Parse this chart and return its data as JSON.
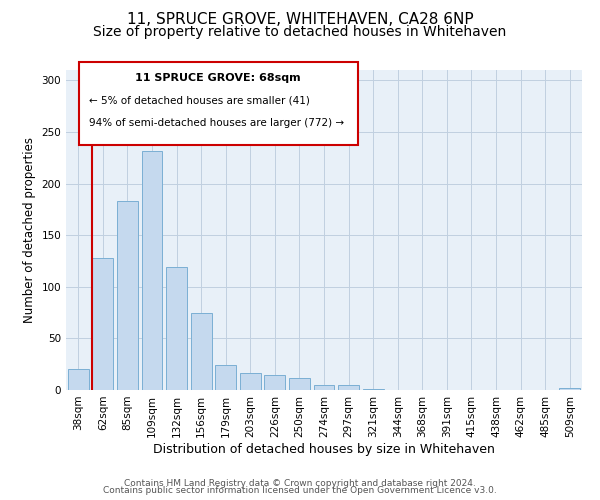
{
  "title": "11, SPRUCE GROVE, WHITEHAVEN, CA28 6NP",
  "subtitle": "Size of property relative to detached houses in Whitehaven",
  "xlabel": "Distribution of detached houses by size in Whitehaven",
  "ylabel": "Number of detached properties",
  "bar_labels": [
    "38sqm",
    "62sqm",
    "85sqm",
    "109sqm",
    "132sqm",
    "156sqm",
    "179sqm",
    "203sqm",
    "226sqm",
    "250sqm",
    "274sqm",
    "297sqm",
    "321sqm",
    "344sqm",
    "368sqm",
    "391sqm",
    "415sqm",
    "438sqm",
    "462sqm",
    "485sqm",
    "509sqm"
  ],
  "bar_values": [
    20,
    128,
    183,
    232,
    119,
    75,
    24,
    16,
    15,
    12,
    5,
    5,
    1,
    0,
    0,
    0,
    0,
    0,
    0,
    0,
    2
  ],
  "bar_color": "#c5d9ee",
  "bar_edgecolor": "#7bafd4",
  "vline_x_idx": 1,
  "vline_color": "#cc0000",
  "ylim": [
    0,
    310
  ],
  "yticks": [
    0,
    50,
    100,
    150,
    200,
    250,
    300
  ],
  "annotation_title": "11 SPRUCE GROVE: 68sqm",
  "annotation_line1": "← 5% of detached houses are smaller (41)",
  "annotation_line2": "94% of semi-detached houses are larger (772) →",
  "annotation_box_color": "#cc0000",
  "bg_color": "#e8f0f8",
  "footer_line1": "Contains HM Land Registry data © Crown copyright and database right 2024.",
  "footer_line2": "Contains public sector information licensed under the Open Government Licence v3.0.",
  "title_fontsize": 11,
  "subtitle_fontsize": 10,
  "xlabel_fontsize": 9,
  "ylabel_fontsize": 8.5,
  "tick_fontsize": 7.5,
  "annotation_title_fontsize": 8,
  "annotation_text_fontsize": 7.5,
  "footer_fontsize": 6.5
}
